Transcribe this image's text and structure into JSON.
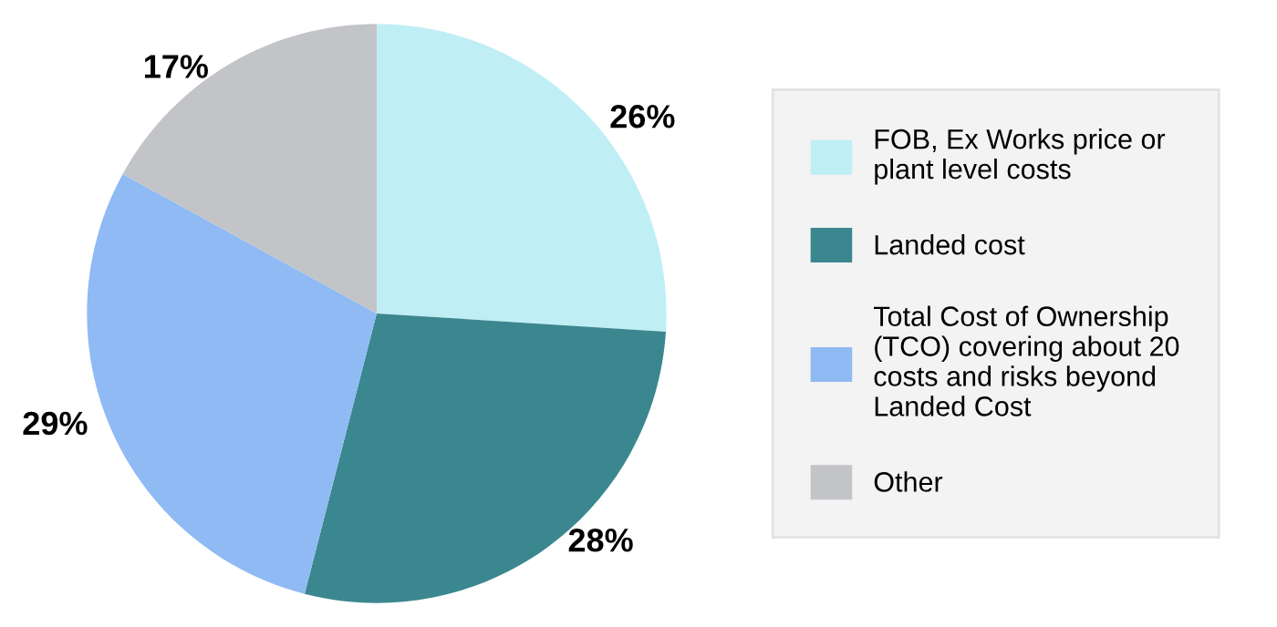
{
  "chart_data": {
    "type": "pie",
    "categories": [
      "FOB, Ex Works price or plant level costs",
      "Landed cost",
      "Total Cost of Ownership (TCO) covering about 20 costs and risks beyond Landed Cost",
      "Other"
    ],
    "values": [
      26,
      28,
      29,
      17
    ],
    "colors": [
      "#c0eef5",
      "#3b878f",
      "#8fbaf3",
      "#c3c4c8"
    ],
    "value_labels": [
      "26%",
      "28%",
      "29%",
      "17%"
    ],
    "legend": "right"
  }
}
